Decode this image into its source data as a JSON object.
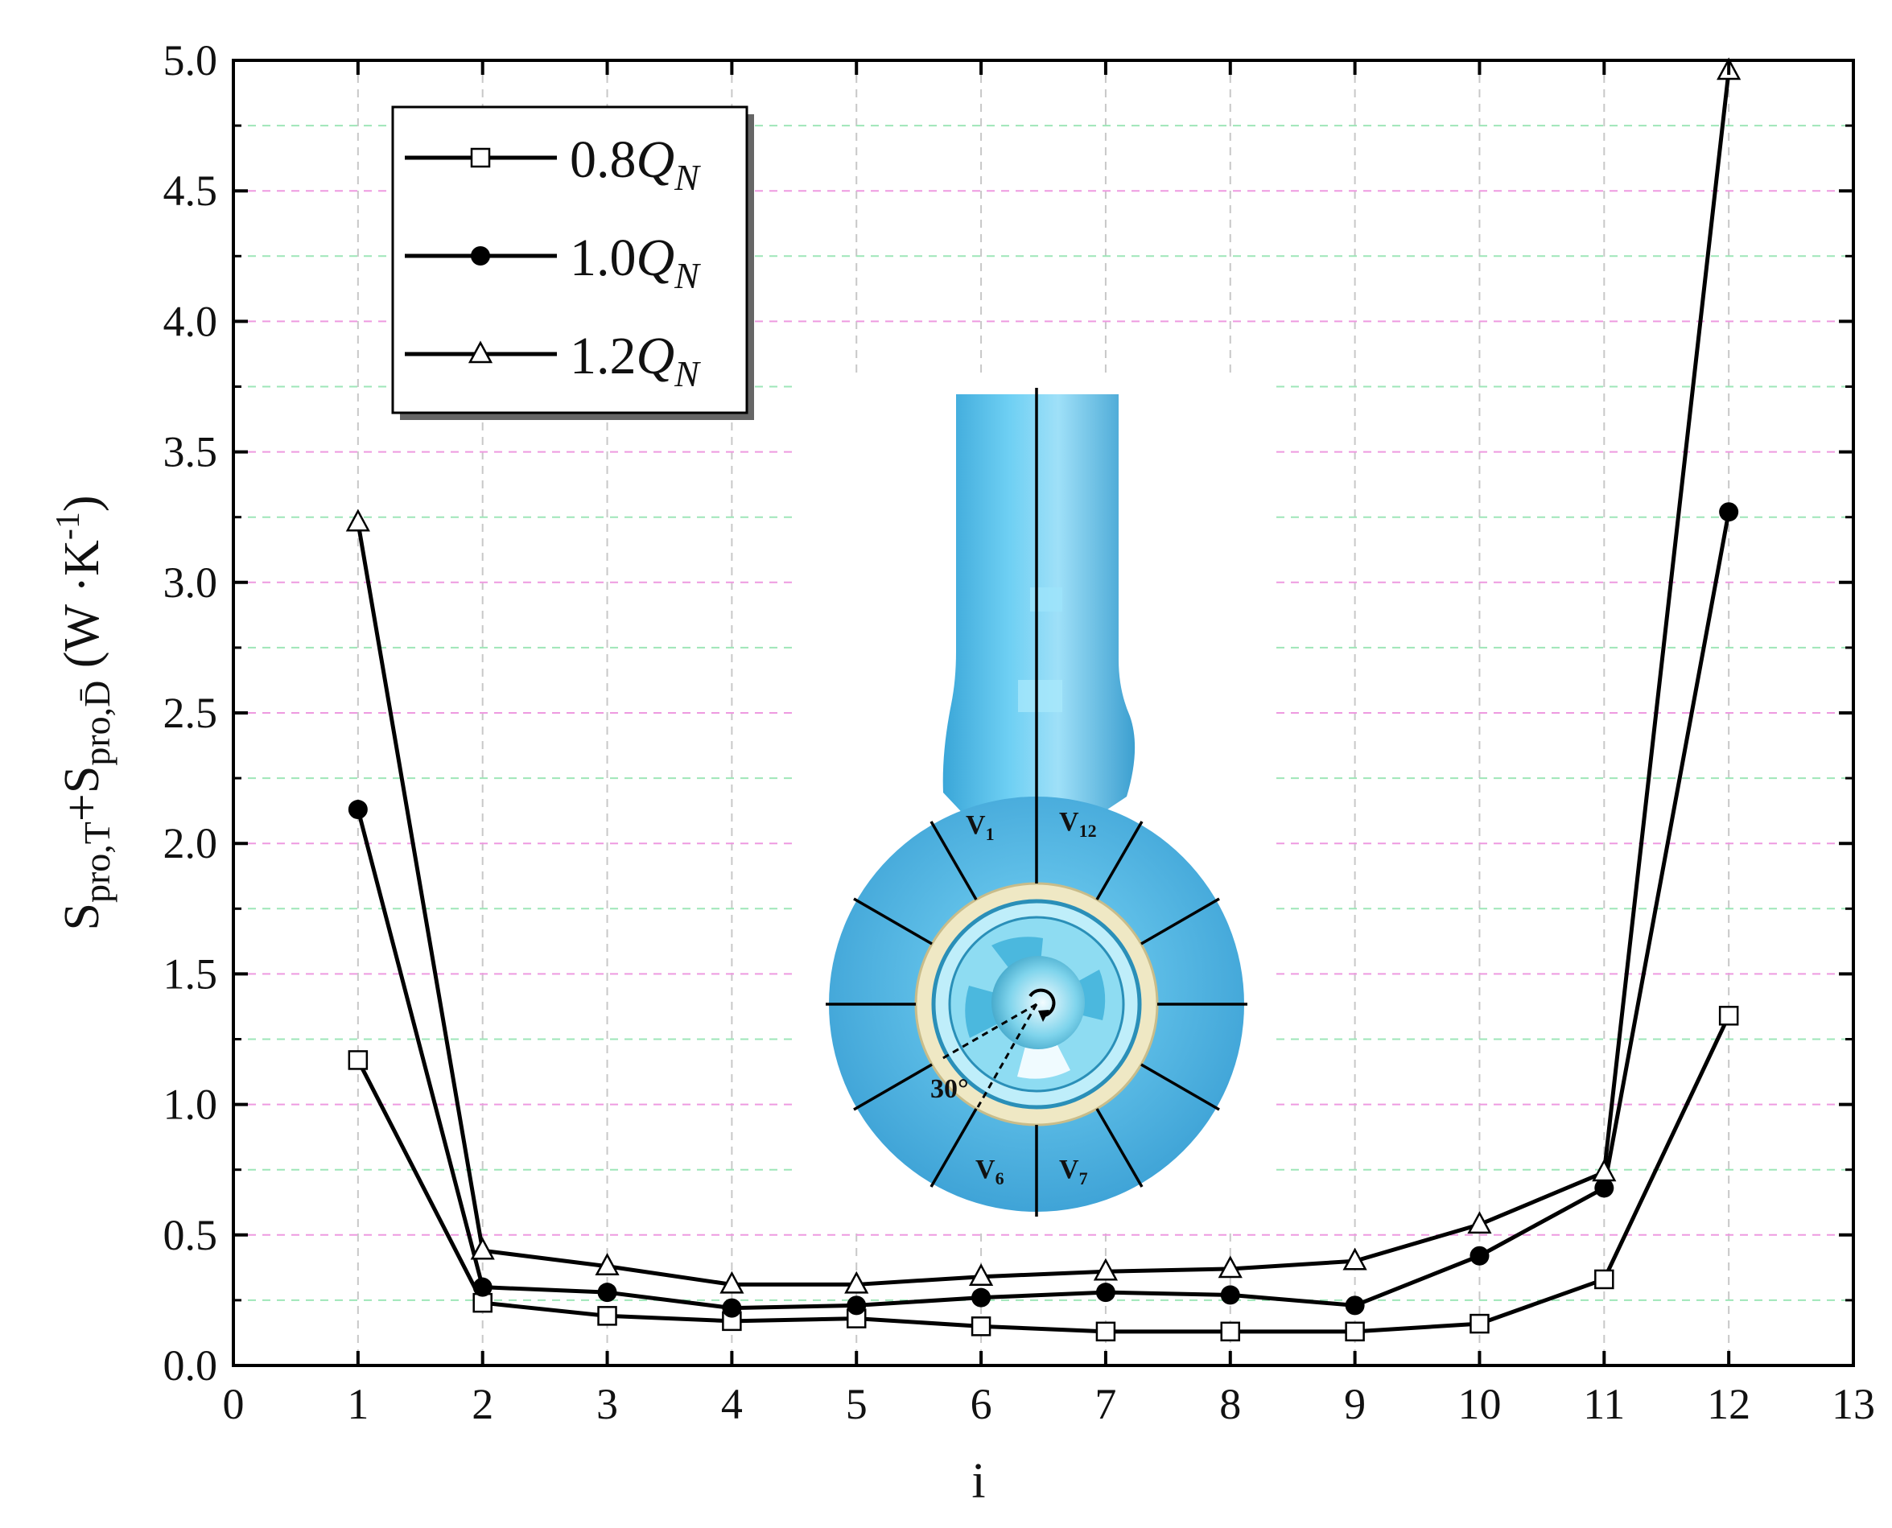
{
  "chart_data": {
    "type": "line",
    "title": "",
    "xlabel": "i",
    "ylabel": {
      "s1": "S",
      "s1_sub": "pro,T",
      "plus": "+",
      "s2": "S",
      "s2_sub": "pro,D̄",
      "unit_open": " (W ·K",
      "unit_sup": "-1",
      "unit_close": ")"
    },
    "xlim": [
      0,
      13
    ],
    "ylim": [
      0.0,
      5.0
    ],
    "x_ticks": [
      "0",
      "1",
      "2",
      "3",
      "4",
      "5",
      "6",
      "7",
      "8",
      "9",
      "10",
      "11",
      "12",
      "13"
    ],
    "y_ticks": [
      "0.0",
      "0.5",
      "1.0",
      "1.5",
      "2.0",
      "2.5",
      "3.0",
      "3.5",
      "4.0",
      "4.5",
      "5.0"
    ],
    "x": [
      1,
      2,
      3,
      4,
      5,
      6,
      7,
      8,
      9,
      10,
      11,
      12
    ],
    "series": [
      {
        "name_main": "0.8",
        "name_q": "Q",
        "name_sub": "N",
        "marker": "square-open",
        "values": [
          1.17,
          0.24,
          0.19,
          0.17,
          0.18,
          0.15,
          0.13,
          0.13,
          0.13,
          0.16,
          0.33,
          1.34
        ]
      },
      {
        "name_main": "1.0",
        "name_q": "Q",
        "name_sub": "N",
        "marker": "circle-filled",
        "values": [
          2.13,
          0.3,
          0.28,
          0.22,
          0.23,
          0.26,
          0.28,
          0.27,
          0.23,
          0.42,
          0.68,
          3.27
        ]
      },
      {
        "name_main": "1.2",
        "name_q": "Q",
        "name_sub": "N",
        "marker": "triangle-open",
        "values": [
          3.23,
          0.44,
          0.38,
          0.31,
          0.31,
          0.34,
          0.36,
          0.37,
          0.4,
          0.54,
          0.74,
          4.96
        ]
      }
    ],
    "grid": true,
    "legend_position": "top-left",
    "colors": {
      "line": "#000000",
      "grid_major": "#c8c8c8",
      "grid_minor_pink": "#ee9ae0",
      "grid_minor_green": "#9ee6b8",
      "pump_body": "#5ec3ec",
      "pump_ring": "#efe8c4"
    }
  },
  "inset": {
    "labels": {
      "v1": "V",
      "v1_sub": "1",
      "v12": "V",
      "v12_sub": "12",
      "v6": "V",
      "v6_sub": "6",
      "v7": "V",
      "v7_sub": "7",
      "angle": "30°"
    }
  }
}
